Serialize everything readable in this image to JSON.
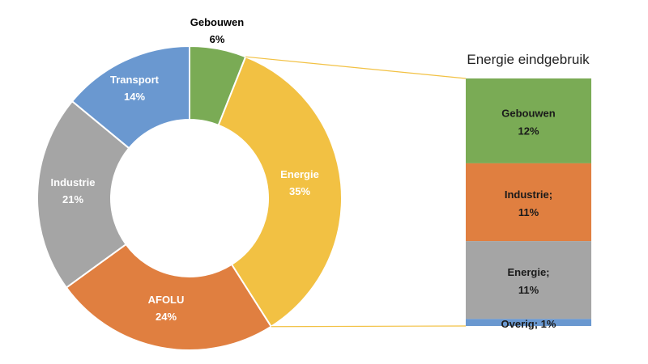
{
  "chart_data": [
    {
      "type": "pie",
      "variant": "donut",
      "slices": [
        {
          "label": "Gebouwen",
          "value": 6,
          "display": "6%",
          "color": "#7aab55",
          "label_color": "#000000"
        },
        {
          "label": "Energie",
          "value": 35,
          "display": "35%",
          "color": "#f2c143",
          "label_color": "#ffffff"
        },
        {
          "label": "AFOLU",
          "value": 24,
          "display": "24%",
          "color": "#e07f40",
          "label_color": "#ffffff"
        },
        {
          "label": "Industrie",
          "value": 21,
          "display": "21%",
          "color": "#a5a5a5",
          "label_color": "#ffffff"
        },
        {
          "label": "Transport",
          "value": 14,
          "display": "14%",
          "color": "#6a98d0",
          "label_color": "#ffffff"
        }
      ],
      "connector_color": "#f2c143"
    },
    {
      "type": "bar",
      "variant": "stacked",
      "title": "Energie eindgebruik",
      "segments": [
        {
          "label": "Gebouwen",
          "value": 12,
          "display": "12%",
          "color": "#7aab55"
        },
        {
          "label": "Industrie;",
          "value": 11,
          "display": "11%",
          "color": "#e07f40"
        },
        {
          "label": "Energie;",
          "value": 11,
          "display": "11%",
          "color": "#a5a5a5"
        },
        {
          "label": "Overig;",
          "value": 1,
          "display": "1%",
          "color": "#6a98d0"
        }
      ]
    }
  ]
}
